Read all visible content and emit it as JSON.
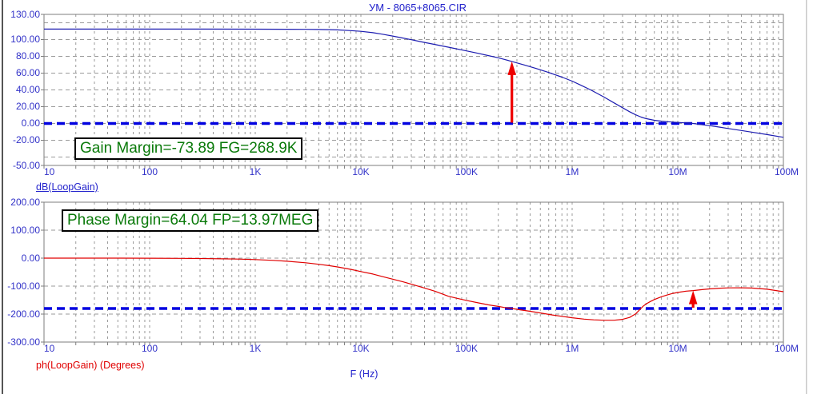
{
  "window": {
    "title": "УМ - 8065+8065.CIR"
  },
  "colors": {
    "title_blue": "#2323cc",
    "tick_label_blue": "#3232c8",
    "gain_curve_blue": "#1c1cb0",
    "phase_curve_red": "#e00000",
    "operating_line_blue": "#0202e0",
    "arrow_red": "#ee0000",
    "grid_gray": "#9a9a9a",
    "frame_gray": "#7d7d7d",
    "annotation_green": "#0a7a0a"
  },
  "chart_data": [
    {
      "type": "line",
      "title": "УМ - 8065+8065.CIR",
      "xlabel": "F (Hz)",
      "x_scale": "log",
      "xlim": [
        10,
        100000000
      ],
      "x_tick_values": [
        10,
        100,
        1000,
        10000,
        100000,
        1000000,
        10000000,
        100000000
      ],
      "x_tick_labels": [
        "10",
        "100",
        "1K",
        "10K",
        "100K",
        "1M",
        "10M",
        "100M"
      ],
      "ylabel": "dB(LoopGain)",
      "ylim": [
        -50,
        130
      ],
      "y_tick_values": [
        130,
        100,
        80,
        60,
        40,
        20,
        0,
        -20,
        -50
      ],
      "y_tick_labels": [
        "130.00",
        "100.00",
        "80.00",
        "60.00",
        "40.00",
        "20.00",
        "0.00",
        "-20.00",
        "-50.00"
      ],
      "y_grid_values": [
        120,
        100,
        80,
        60,
        40,
        20,
        0,
        -20,
        -40
      ],
      "grid": true,
      "legend_position": "none",
      "annotation": "Gain Margin=-73.89 FG=268.9K",
      "reference_line": {
        "value": 0,
        "style": "dashed"
      },
      "marker_arrow": {
        "freq": 268900,
        "from": 0,
        "to": 73.89
      },
      "series": [
        {
          "name": "dB(LoopGain)",
          "points": [
            [
              10,
              112.5
            ],
            [
              30,
              112.5
            ],
            [
              100,
              112.5
            ],
            [
              300,
              112.5
            ],
            [
              1000,
              112.4
            ],
            [
              2000,
              112.3
            ],
            [
              3000,
              112.2
            ],
            [
              4000,
              112.0
            ],
            [
              5000,
              111.8
            ],
            [
              6000,
              111.5
            ],
            [
              8000,
              110.7
            ],
            [
              10000,
              109.8
            ],
            [
              13000,
              108.2
            ],
            [
              16000,
              106.4
            ],
            [
              20000,
              104.2
            ],
            [
              25000,
              101.8
            ],
            [
              30000,
              99.8
            ],
            [
              40000,
              96.6
            ],
            [
              50000,
              94.2
            ],
            [
              70000,
              90.5
            ],
            [
              100000,
              86.5
            ],
            [
              130000,
              83.5
            ],
            [
              160000,
              81.0
            ],
            [
              200000,
              78.3
            ],
            [
              268900,
              73.89
            ],
            [
              350000,
              69.8
            ],
            [
              450000,
              65.8
            ],
            [
              600000,
              60.8
            ],
            [
              800000,
              55.2
            ],
            [
              1000000,
              50.5
            ],
            [
              1200000,
              45.8
            ],
            [
              1500000,
              40.0
            ],
            [
              2000000,
              31.5
            ],
            [
              2500000,
              24.5
            ],
            [
              3000000,
              18.8
            ],
            [
              3500000,
              14.0
            ],
            [
              4000000,
              10.3
            ],
            [
              4500000,
              7.6
            ],
            [
              5000000,
              5.8
            ],
            [
              6000000,
              3.8
            ],
            [
              7000000,
              2.8
            ],
            [
              8000000,
              2.1
            ],
            [
              10000000,
              1.2
            ],
            [
              12000000,
              0.6
            ],
            [
              13970000,
              0.0
            ],
            [
              17000000,
              -1.4
            ],
            [
              20000000,
              -2.6
            ],
            [
              25000000,
              -4.4
            ],
            [
              30000000,
              -6.0
            ],
            [
              40000000,
              -8.4
            ],
            [
              50000000,
              -10.3
            ],
            [
              70000000,
              -13.2
            ],
            [
              100000000,
              -16.5
            ]
          ]
        }
      ]
    },
    {
      "type": "line",
      "title": "",
      "xlabel": "F (Hz)",
      "x_scale": "log",
      "xlim": [
        10,
        100000000
      ],
      "x_tick_values": [
        10,
        100,
        1000,
        10000,
        100000,
        1000000,
        10000000,
        100000000
      ],
      "x_tick_labels": [
        "10",
        "100",
        "1K",
        "10K",
        "100K",
        "1M",
        "10M",
        "100M"
      ],
      "ylabel": "ph(LoopGain) (Degrees)",
      "ylim": [
        -300,
        200
      ],
      "y_tick_values": [
        200,
        100,
        0,
        -100,
        -200,
        -300
      ],
      "y_tick_labels": [
        "200.00",
        "100.00",
        "0.00",
        "-100.00",
        "-200.00",
        "-300.00"
      ],
      "y_grid_values": [
        100,
        0,
        -100,
        -200
      ],
      "grid": true,
      "legend_position": "none",
      "annotation": "Phase Margin=64.04 FP=13.97MEG",
      "reference_line": {
        "value": -180,
        "style": "dashed"
      },
      "marker_arrow": {
        "freq": 13970000,
        "from": -180,
        "to": -115.96
      },
      "series": [
        {
          "name": "ph(LoopGain)",
          "points": [
            [
              10,
              0
            ],
            [
              50,
              0
            ],
            [
              100,
              -0.3
            ],
            [
              200,
              -0.8
            ],
            [
              300,
              -1.5
            ],
            [
              500,
              -2.5
            ],
            [
              700,
              -3.5
            ],
            [
              1000,
              -5
            ],
            [
              1500,
              -8
            ],
            [
              2000,
              -11
            ],
            [
              3000,
              -16.5
            ],
            [
              4000,
              -22
            ],
            [
              5000,
              -27
            ],
            [
              6000,
              -31.5
            ],
            [
              8000,
              -40
            ],
            [
              10000,
              -48
            ],
            [
              13000,
              -57
            ],
            [
              16000,
              -66
            ],
            [
              20000,
              -75
            ],
            [
              25000,
              -84.5
            ],
            [
              30000,
              -93
            ],
            [
              40000,
              -107
            ],
            [
              50000,
              -118
            ],
            [
              67000,
              -136
            ],
            [
              80000,
              -143
            ],
            [
              100000,
              -151
            ],
            [
              130000,
              -160
            ],
            [
              160000,
              -167
            ],
            [
              200000,
              -172.5
            ],
            [
              230000,
              -176.5
            ],
            [
              268900,
              -180
            ],
            [
              320000,
              -184.5
            ],
            [
              400000,
              -190
            ],
            [
              500000,
              -196
            ],
            [
              650000,
              -203
            ],
            [
              800000,
              -208
            ],
            [
              1000000,
              -213
            ],
            [
              1300000,
              -218
            ],
            [
              1600000,
              -220.5
            ],
            [
              2000000,
              -222
            ],
            [
              2500000,
              -222
            ],
            [
              3000000,
              -219
            ],
            [
              3500000,
              -212
            ],
            [
              4000000,
              -199
            ],
            [
              4400000,
              -183
            ],
            [
              4700000,
              -172
            ],
            [
              5000000,
              -164
            ],
            [
              5500000,
              -155
            ],
            [
              6000000,
              -148
            ],
            [
              7000000,
              -138
            ],
            [
              8000000,
              -131
            ],
            [
              9000000,
              -126
            ],
            [
              10000000,
              -122.5
            ],
            [
              12000000,
              -118
            ],
            [
              13970000,
              -115.96
            ],
            [
              17000000,
              -112.5
            ],
            [
              20000000,
              -110
            ],
            [
              25000000,
              -107.5
            ],
            [
              30000000,
              -106.3
            ],
            [
              40000000,
              -106
            ],
            [
              50000000,
              -107
            ],
            [
              70000000,
              -111
            ],
            [
              100000000,
              -120
            ]
          ]
        }
      ]
    }
  ]
}
